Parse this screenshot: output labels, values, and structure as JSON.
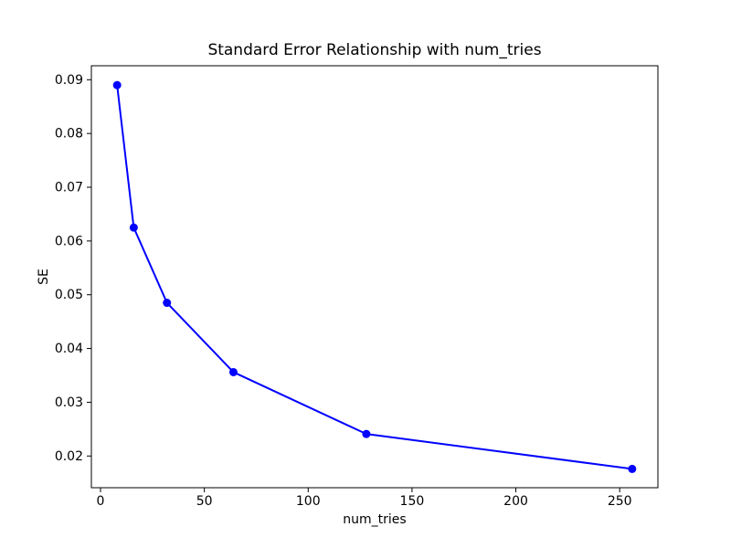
{
  "figure": {
    "background": "#ffffff"
  },
  "chart_data": {
    "type": "line",
    "title": "Standard Error Relationship with num_tries",
    "xlabel": "num_tries",
    "ylabel": "SE",
    "x": [
      8,
      16,
      32,
      64,
      128,
      256
    ],
    "y": [
      0.089,
      0.0625,
      0.0485,
      0.0356,
      0.0241,
      0.0176
    ],
    "series": [
      {
        "name": "SE",
        "x": [
          8,
          16,
          32,
          64,
          128,
          256
        ],
        "y": [
          0.089,
          0.0625,
          0.0485,
          0.0356,
          0.0241,
          0.0176
        ]
      }
    ],
    "line_color": "#0000ff",
    "marker": "circle",
    "marker_radius": 4.5,
    "line_width": 2,
    "xlim": [
      -4.4,
      268.4
    ],
    "ylim": [
      0.0141,
      0.0926
    ],
    "xticks": [
      0,
      50,
      100,
      150,
      200,
      250
    ],
    "xtick_labels": [
      "0",
      "50",
      "100",
      "150",
      "200",
      "250"
    ],
    "yticks": [
      0.02,
      0.03,
      0.04,
      0.05,
      0.06,
      0.07,
      0.08,
      0.09
    ],
    "ytick_labels": [
      "0.02",
      "0.03",
      "0.04",
      "0.05",
      "0.06",
      "0.07",
      "0.08",
      "0.09"
    ],
    "grid": false,
    "legend": null
  }
}
